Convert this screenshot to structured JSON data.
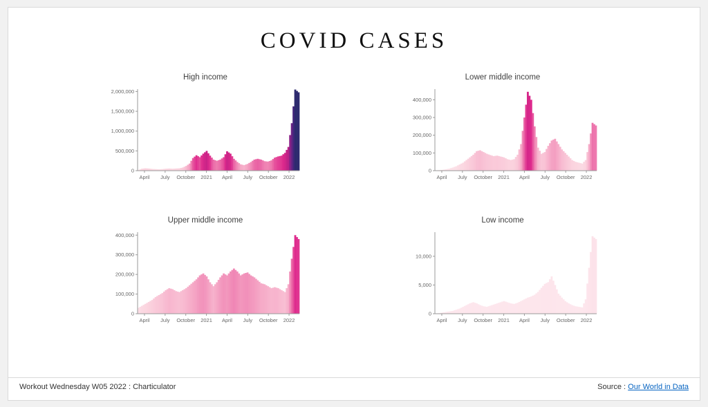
{
  "page": {
    "title": "COVID CASES"
  },
  "footer": {
    "left_text": "Workout Wednesday W05 2022 : Charticulator",
    "source_label": "Source : ",
    "source_link_text": "Our World in Data"
  },
  "colors": {
    "background": "#f1f1f1",
    "card_bg": "#ffffff",
    "card_border": "#d9d9d9",
    "axis_line": "#999999",
    "tick_text": "#666666",
    "chart_title_text": "#404040",
    "footer_text": "#333333",
    "link": "#0563c1",
    "scale_stops": [
      [
        0,
        "#fde7ed"
      ],
      [
        50000,
        "#fbd6e0"
      ],
      [
        100000,
        "#f9c4d6"
      ],
      [
        150000,
        "#f6adc9"
      ],
      [
        200000,
        "#f295bc"
      ],
      [
        250000,
        "#ee7cb0"
      ],
      [
        300000,
        "#e962a4"
      ],
      [
        350000,
        "#e44698"
      ],
      [
        400000,
        "#de2a8d"
      ],
      [
        500000,
        "#c92387"
      ],
      [
        700000,
        "#a62189"
      ],
      [
        1000000,
        "#7d2288"
      ],
      [
        1500000,
        "#4b2580"
      ],
      [
        2000000,
        "#2d2a6e"
      ]
    ]
  },
  "chart_data": [
    {
      "type": "area",
      "title": "High income",
      "ymax": 2060000,
      "yticks": [
        0,
        500000,
        1000000,
        1500000,
        2000000
      ],
      "xtick_labels": [
        "April",
        "July",
        "October",
        "2021",
        "April",
        "July",
        "October",
        "2022"
      ],
      "xtick_idx": [
        2,
        8,
        14,
        20,
        26,
        32,
        38,
        44
      ],
      "values": [
        20000,
        50000,
        60000,
        55000,
        45000,
        40000,
        35000,
        40000,
        50000,
        55000,
        50000,
        55000,
        60000,
        80000,
        120000,
        180000,
        320000,
        390000,
        340000,
        430000,
        500000,
        380000,
        280000,
        250000,
        280000,
        340000,
        490000,
        430000,
        300000,
        220000,
        160000,
        140000,
        170000,
        220000,
        280000,
        300000,
        280000,
        240000,
        230000,
        260000,
        330000,
        360000,
        380000,
        450000,
        600000,
        1200000,
        2050000,
        1980000
      ]
    },
    {
      "type": "area",
      "title": "Lower middle income",
      "ymax": 460000,
      "yticks": [
        0,
        100000,
        200000,
        300000,
        400000
      ],
      "xtick_labels": [
        "April",
        "July",
        "October",
        "2021",
        "April",
        "July",
        "October",
        "2022"
      ],
      "xtick_idx": [
        2,
        8,
        14,
        20,
        26,
        32,
        38,
        44
      ],
      "values": [
        2000,
        3000,
        5000,
        8000,
        12000,
        18000,
        25000,
        35000,
        45000,
        60000,
        75000,
        90000,
        110000,
        115000,
        105000,
        95000,
        88000,
        82000,
        85000,
        80000,
        75000,
        65000,
        60000,
        65000,
        90000,
        150000,
        300000,
        445000,
        400000,
        250000,
        130000,
        95000,
        105000,
        140000,
        170000,
        180000,
        150000,
        120000,
        100000,
        80000,
        60000,
        50000,
        45000,
        40000,
        60000,
        150000,
        270000,
        255000
      ]
    },
    {
      "type": "area",
      "title": "Upper middle income",
      "ymax": 415000,
      "yticks": [
        0,
        100000,
        200000,
        300000,
        400000
      ],
      "xtick_labels": [
        "April",
        "July",
        "October",
        "2021",
        "April",
        "July",
        "October",
        "2022"
      ],
      "xtick_idx": [
        2,
        8,
        14,
        20,
        26,
        32,
        38,
        44
      ],
      "values": [
        30000,
        40000,
        50000,
        60000,
        70000,
        85000,
        95000,
        105000,
        120000,
        130000,
        125000,
        115000,
        110000,
        120000,
        130000,
        145000,
        160000,
        175000,
        195000,
        205000,
        190000,
        160000,
        140000,
        160000,
        185000,
        205000,
        195000,
        215000,
        230000,
        215000,
        195000,
        205000,
        210000,
        195000,
        185000,
        170000,
        155000,
        150000,
        140000,
        130000,
        135000,
        130000,
        120000,
        110000,
        150000,
        280000,
        400000,
        380000
      ]
    },
    {
      "type": "area",
      "title": "Low income",
      "ymax": 14200,
      "yticks": [
        0,
        5000,
        10000
      ],
      "xtick_labels": [
        "April",
        "July",
        "October",
        "2021",
        "April",
        "July",
        "October",
        "2022"
      ],
      "xtick_idx": [
        2,
        8,
        14,
        20,
        26,
        32,
        38,
        44
      ],
      "values": [
        50,
        100,
        200,
        300,
        400,
        500,
        700,
        900,
        1200,
        1500,
        1800,
        2000,
        1800,
        1500,
        1300,
        1200,
        1400,
        1600,
        1800,
        2000,
        2200,
        2000,
        1800,
        1700,
        1900,
        2200,
        2500,
        2800,
        3000,
        3300,
        3800,
        4500,
        5200,
        5500,
        6500,
        5000,
        3500,
        2800,
        2200,
        1800,
        1500,
        1300,
        1200,
        1100,
        2500,
        8000,
        13500,
        13000
      ]
    }
  ]
}
